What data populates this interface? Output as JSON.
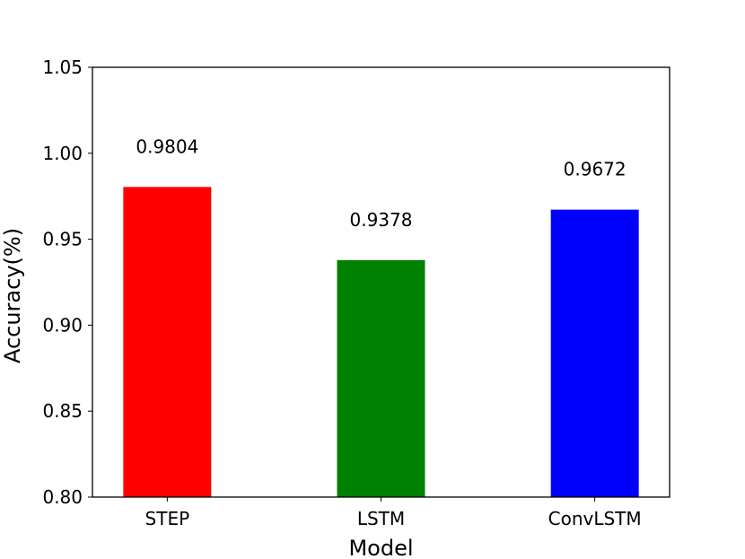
{
  "chart_data": {
    "type": "bar",
    "categories": [
      "STEP",
      "LSTM",
      "ConvLSTM"
    ],
    "values": [
      0.9804,
      0.9378,
      0.9672
    ],
    "data_labels": [
      "0.9804",
      "0.9378",
      "0.9672"
    ],
    "colors": [
      "#ff0000",
      "#008000",
      "#0000ff"
    ],
    "xlabel": "Model",
    "ylabel": "Accuracy(%)",
    "ylim": [
      0.8,
      1.05
    ],
    "yticks": [
      0.8,
      0.85,
      0.9,
      0.95,
      1.0,
      1.05
    ],
    "ytick_labels": [
      "0.80",
      "0.85",
      "0.90",
      "0.95",
      "1.00",
      "1.05"
    ],
    "grid": false,
    "legend": false
  }
}
